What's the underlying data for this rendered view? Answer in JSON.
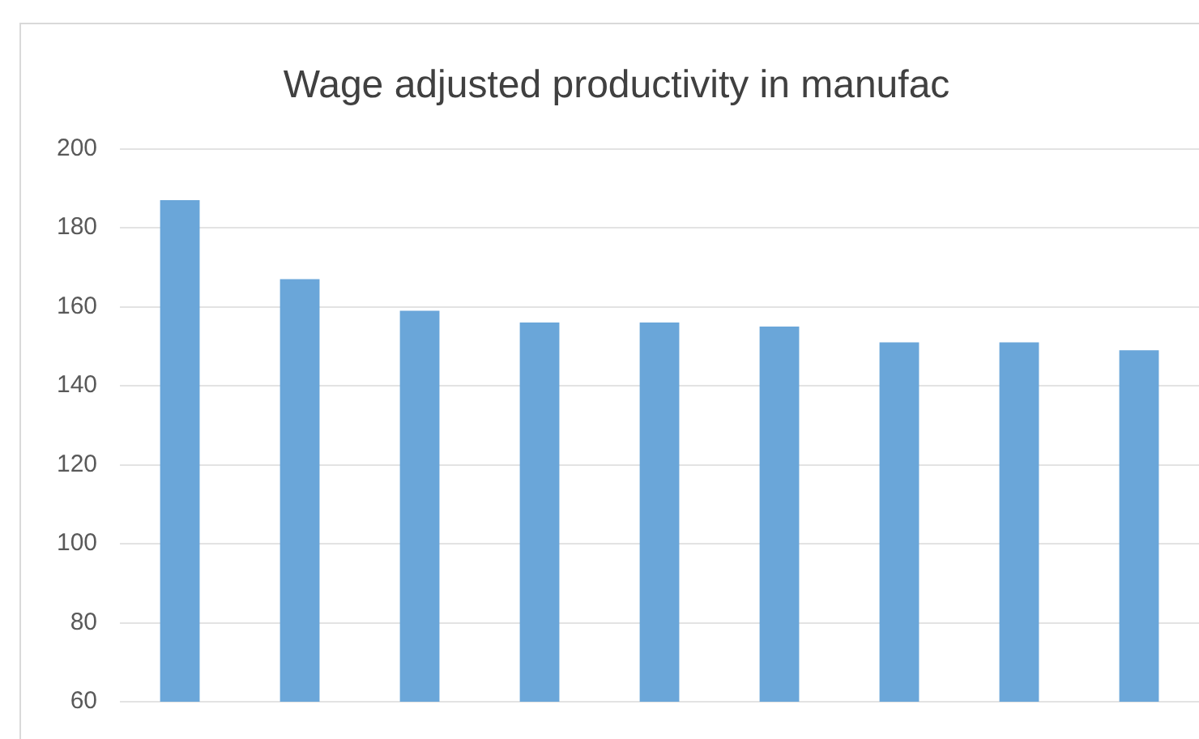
{
  "chart_data": {
    "type": "bar",
    "title": "Wage adjusted productivity in manufac",
    "categories": [
      null,
      null,
      null,
      null,
      null,
      null,
      null,
      null,
      null
    ],
    "values": [
      187,
      167,
      159,
      156,
      156,
      155,
      151,
      151,
      149
    ],
    "color": "#6aa6d9",
    "ylim": [
      60,
      200
    ],
    "yticks": [
      60,
      80,
      100,
      120,
      140,
      160,
      180,
      200
    ],
    "grid": "y",
    "tick_labels": "y"
  }
}
